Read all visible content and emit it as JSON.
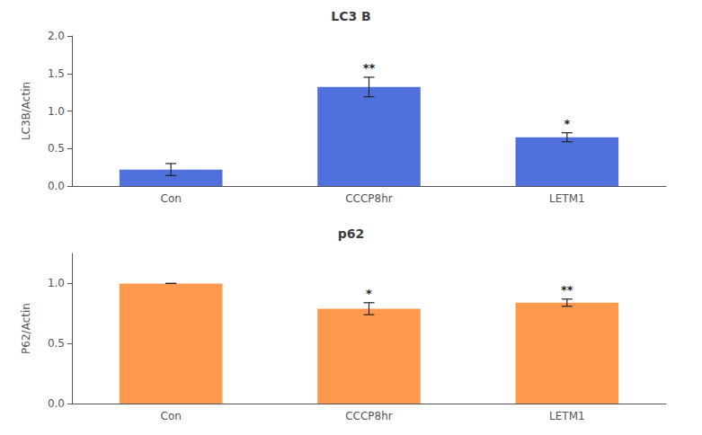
{
  "chart_data": [
    {
      "type": "bar",
      "title": "LC3 B",
      "ylabel": "LC3B/Actin",
      "categories": [
        "Con",
        "CCCP8hr",
        "LETM1"
      ],
      "values": [
        0.22,
        1.32,
        0.65
      ],
      "errors": [
        0.08,
        0.13,
        0.06
      ],
      "annotations": [
        {
          "category": "CCCP8hr",
          "text": "**"
        },
        {
          "category": "LETM1",
          "text": "*"
        }
      ],
      "ylim": [
        0,
        2.0
      ],
      "yticks": [
        {
          "value": 0.0,
          "label": "0.0"
        },
        {
          "value": 0.5,
          "label": "0.5"
        },
        {
          "value": 1.0,
          "label": "1.0"
        },
        {
          "value": 1.5,
          "label": "1.5"
        },
        {
          "value": 2.0,
          "label": "2.0"
        }
      ],
      "grid": false
    },
    {
      "type": "bar",
      "title": "p62",
      "ylabel": "P62/Actin",
      "categories": [
        "Con",
        "CCCP8hr",
        "LETM1"
      ],
      "values": [
        1.0,
        0.79,
        0.84
      ],
      "errors": [
        0.0,
        0.05,
        0.03
      ],
      "annotations": [
        {
          "category": "CCCP8hr",
          "text": "*"
        },
        {
          "category": "LETM1",
          "text": "**"
        }
      ],
      "ylim": [
        0.0,
        1.25
      ],
      "yticks": [
        {
          "value": 0.0,
          "label": "0.0"
        },
        {
          "value": 0.5,
          "label": "0.5"
        },
        {
          "value": 1.0,
          "label": "1.0"
        }
      ],
      "grid": false
    }
  ]
}
